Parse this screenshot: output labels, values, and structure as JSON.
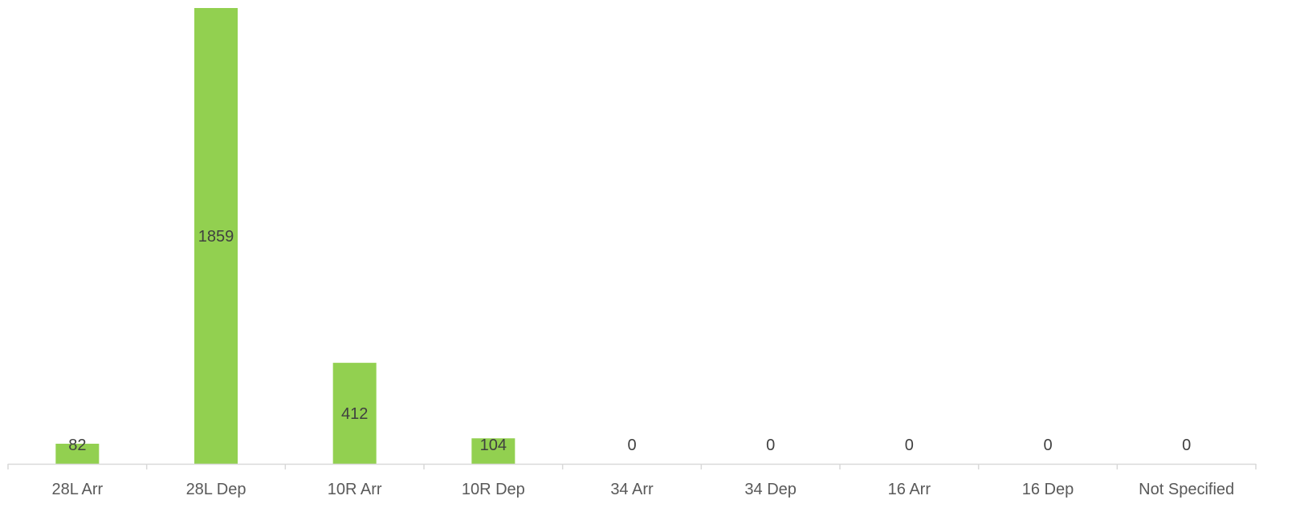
{
  "chart_data": {
    "type": "bar",
    "title": "",
    "xlabel": "",
    "ylabel": "",
    "categories": [
      "28L Arr",
      "28L Dep",
      "10R Arr",
      "10R Dep",
      "34 Arr",
      "34 Dep",
      "16 Arr",
      "16 Dep",
      "Not Specified"
    ],
    "values": [
      82,
      1859,
      412,
      104,
      0,
      0,
      0,
      0,
      0
    ],
    "data_labels": [
      "82",
      "1859",
      "412",
      "104",
      "0",
      "0",
      "0",
      "0",
      "0"
    ],
    "ylim": [
      0,
      1859
    ],
    "grid": false,
    "legend": "none",
    "y_axis_visible": false,
    "colors": {
      "bar": "#92d050",
      "label_text": "#404040",
      "axis_line": "#d9d9d9",
      "tick_text": "#595959"
    }
  }
}
